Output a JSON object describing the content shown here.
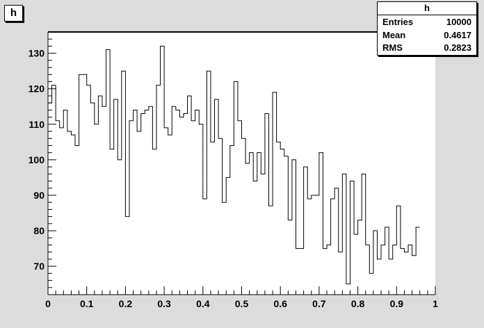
{
  "title": "h",
  "stats": {
    "title": "h",
    "rows": [
      {
        "label": "Entries",
        "value": "10000"
      },
      {
        "label": "Mean",
        "value": "0.4617"
      },
      {
        "label": "RMS",
        "value": "0.2823"
      }
    ]
  },
  "colors": {
    "background": "#dcdcdc",
    "frame": "#ffffff",
    "line": "#000000"
  },
  "chart_data": {
    "type": "histogram",
    "title": "h",
    "xlabel": "",
    "ylabel": "",
    "xlim": [
      0,
      1
    ],
    "ylim": [
      62,
      136
    ],
    "bin_width": 0.01,
    "x_ticks": [
      "0",
      "0.1",
      "0.2",
      "0.3",
      "0.4",
      "0.5",
      "0.6",
      "0.7",
      "0.8",
      "0.9",
      "1"
    ],
    "y_ticks": [
      "70",
      "80",
      "90",
      "100",
      "110",
      "120",
      "130"
    ],
    "grid": false,
    "legend": "top-right stats box",
    "series": [
      {
        "values": [
          116,
          121,
          111,
          109,
          114,
          108,
          107,
          104,
          124,
          124,
          121,
          116,
          110,
          118,
          115,
          131,
          103,
          117,
          100,
          125,
          84,
          111,
          114,
          108,
          113,
          114,
          115,
          103,
          121,
          132,
          109,
          107,
          115,
          114,
          112,
          113,
          118,
          111,
          114,
          110,
          89,
          125,
          105,
          117,
          106,
          88,
          95,
          104,
          122,
          111,
          106,
          99,
          102,
          94,
          102,
          96,
          113,
          87,
          119,
          105,
          103,
          101,
          83,
          100,
          75,
          75,
          98,
          89,
          90,
          90,
          102,
          75,
          76,
          89,
          92,
          74,
          96,
          65,
          94,
          79,
          83,
          96,
          76,
          68,
          80,
          72,
          76,
          81,
          72,
          76,
          87,
          75,
          74,
          76,
          73,
          81
        ]
      }
    ]
  }
}
